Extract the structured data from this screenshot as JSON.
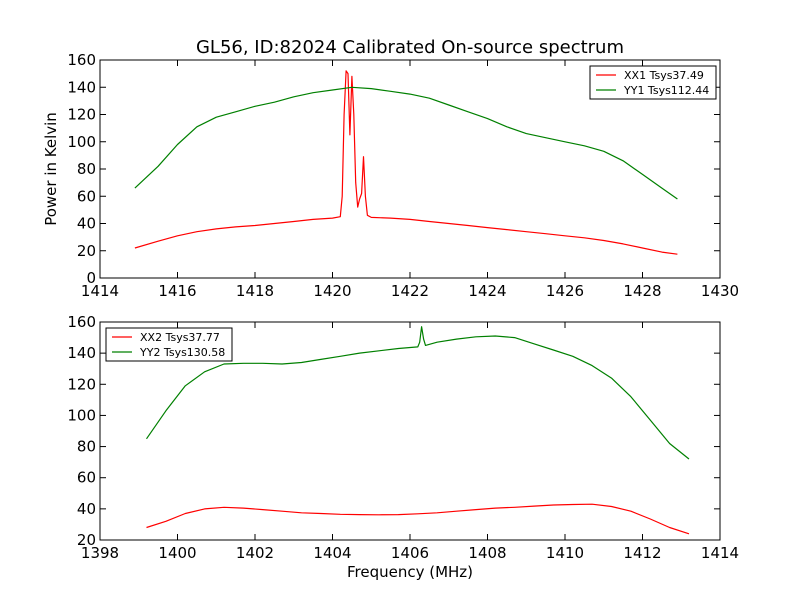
{
  "title": "GL56, ID:82024 Calibrated On-source spectrum",
  "colors": {
    "red": "#ff0000",
    "green": "#008000",
    "axis": "#000000"
  },
  "chart_data": [
    {
      "type": "line",
      "ylabel": "Power in Kelvin",
      "xlabel": "",
      "xlim": [
        1414,
        1430
      ],
      "ylim": [
        0,
        160
      ],
      "xticks": [
        1414,
        1416,
        1418,
        1420,
        1422,
        1424,
        1426,
        1428,
        1430
      ],
      "yticks": [
        0,
        20,
        40,
        60,
        80,
        100,
        120,
        140,
        160
      ],
      "legend_position": "top-right",
      "series": [
        {
          "name": "XX1 Tsys37.49",
          "color": "#ff0000",
          "x": [
            1414.9,
            1415.5,
            1416,
            1416.5,
            1417,
            1417.5,
            1418,
            1418.5,
            1419,
            1419.5,
            1420,
            1420.2,
            1420.25,
            1420.3,
            1420.35,
            1420.4,
            1420.45,
            1420.5,
            1420.55,
            1420.6,
            1420.65,
            1420.7,
            1420.75,
            1420.8,
            1420.85,
            1420.9,
            1421,
            1421.5,
            1422,
            1422.5,
            1423,
            1423.5,
            1424,
            1424.5,
            1425,
            1425.5,
            1426,
            1426.5,
            1427,
            1427.5,
            1428,
            1428.5,
            1428.9
          ],
          "y": [
            22,
            27,
            31,
            34,
            36,
            37.5,
            38.5,
            40,
            41.5,
            43,
            44,
            45,
            60,
            120,
            152,
            150,
            105,
            148,
            120,
            70,
            52,
            58,
            62,
            89,
            60,
            46,
            44.5,
            44,
            43,
            41.5,
            40,
            38.5,
            37,
            35.5,
            34,
            32.5,
            31,
            29.5,
            27.5,
            25,
            22,
            19,
            17.5
          ]
        },
        {
          "name": "YY1 Tsys112.44",
          "color": "#008000",
          "x": [
            1414.9,
            1415.5,
            1416,
            1416.5,
            1417,
            1417.5,
            1418,
            1418.5,
            1419,
            1419.5,
            1420,
            1420.5,
            1421,
            1421.5,
            1422,
            1422.5,
            1423,
            1423.5,
            1424,
            1424.5,
            1425,
            1425.5,
            1426,
            1426.5,
            1427,
            1427.5,
            1428,
            1428.5,
            1428.9
          ],
          "y": [
            66,
            82,
            98,
            111,
            118,
            122,
            126,
            129,
            133,
            136,
            138,
            140,
            139,
            137,
            135,
            132,
            127,
            122,
            117,
            111,
            106,
            103,
            100,
            97,
            93,
            86,
            76,
            66,
            58
          ]
        }
      ]
    },
    {
      "type": "line",
      "ylabel": "",
      "xlabel": "Frequency (MHz)",
      "xlim": [
        1398,
        1414
      ],
      "ylim": [
        20,
        160
      ],
      "xticks": [
        1398,
        1400,
        1402,
        1404,
        1406,
        1408,
        1410,
        1412,
        1414
      ],
      "yticks": [
        20,
        40,
        60,
        80,
        100,
        120,
        140,
        160
      ],
      "legend_position": "top-left",
      "series": [
        {
          "name": "XX2 Tsys37.77",
          "color": "#ff0000",
          "x": [
            1399.2,
            1399.7,
            1400.2,
            1400.7,
            1401.2,
            1401.7,
            1402.2,
            1402.7,
            1403.2,
            1403.7,
            1404.2,
            1404.7,
            1405.2,
            1405.7,
            1406.2,
            1406.7,
            1407.2,
            1407.7,
            1408.2,
            1408.7,
            1409.2,
            1409.7,
            1410.2,
            1410.7,
            1411.2,
            1411.7,
            1412.2,
            1412.7,
            1413.2
          ],
          "y": [
            28,
            32,
            37,
            40,
            41,
            40.5,
            39.5,
            38.5,
            37.5,
            37,
            36.5,
            36.3,
            36.2,
            36.3,
            36.8,
            37.5,
            38.5,
            39.5,
            40.5,
            41,
            41.8,
            42.5,
            42.8,
            43,
            41.5,
            38.5,
            33.5,
            28,
            24
          ]
        },
        {
          "name": "YY2 Tsys130.58",
          "color": "#008000",
          "x": [
            1399.2,
            1399.7,
            1400.2,
            1400.7,
            1401.2,
            1401.7,
            1402.2,
            1402.7,
            1403.2,
            1403.7,
            1404.2,
            1404.7,
            1405.2,
            1405.7,
            1406.2,
            1406.25,
            1406.3,
            1406.35,
            1406.4,
            1406.7,
            1407.2,
            1407.7,
            1408.2,
            1408.7,
            1409.2,
            1409.7,
            1410.2,
            1410.7,
            1411.2,
            1411.7,
            1412.2,
            1412.7,
            1413.2
          ],
          "y": [
            85,
            103,
            119,
            128,
            133,
            133.5,
            133.5,
            133,
            134,
            136,
            138,
            140,
            141.5,
            143,
            144,
            147,
            157,
            149,
            145,
            147,
            149,
            150.5,
            151,
            150,
            146,
            142,
            138,
            132,
            124,
            112,
            97,
            82,
            72
          ]
        }
      ]
    }
  ]
}
